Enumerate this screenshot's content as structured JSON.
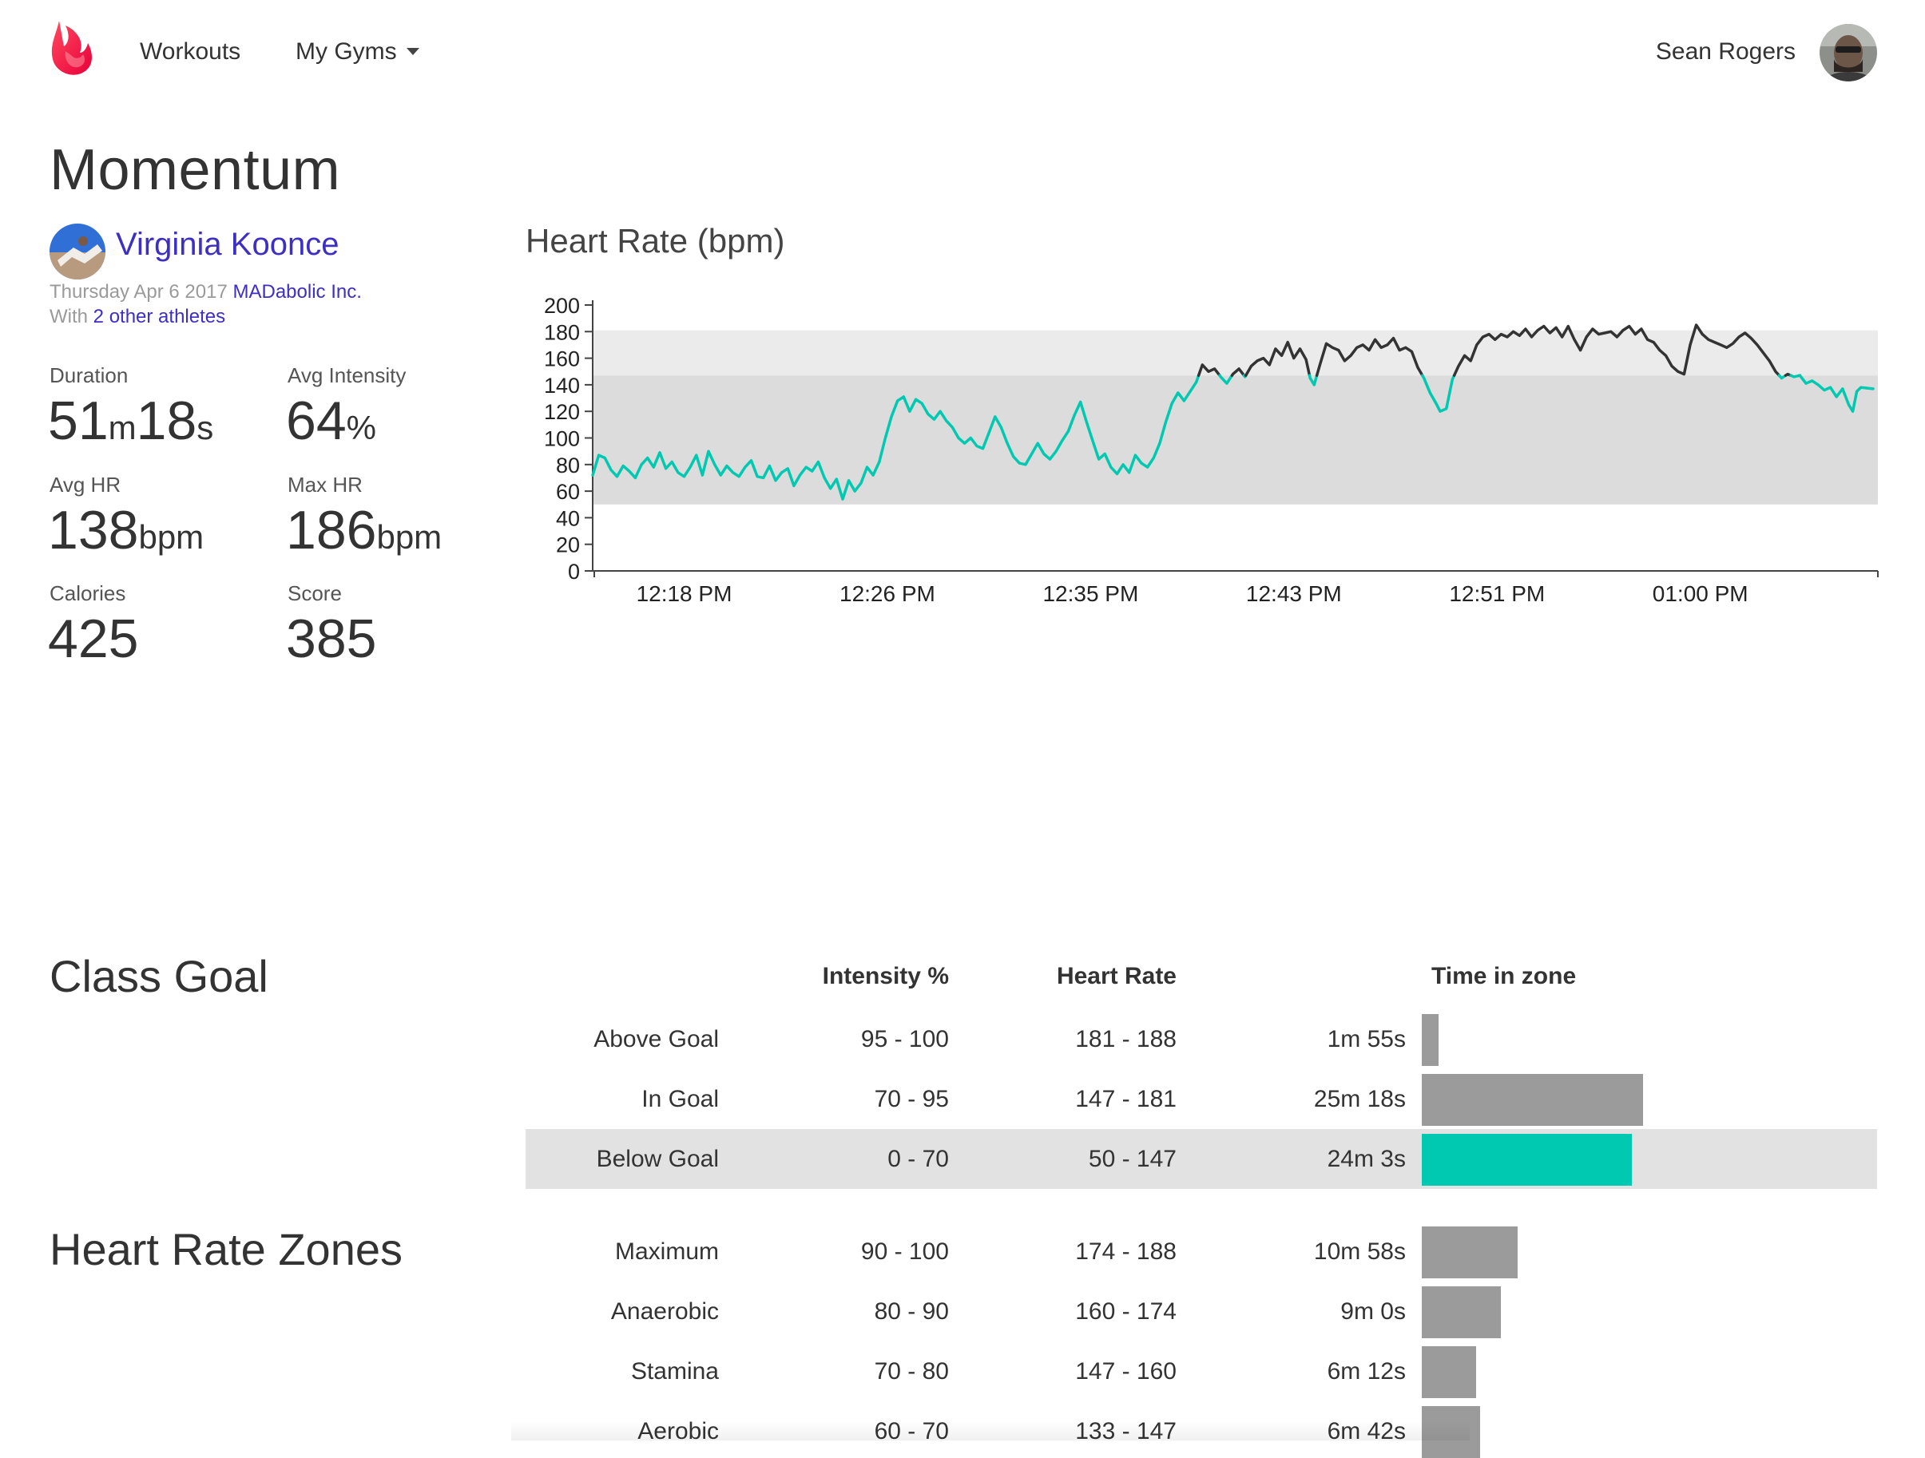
{
  "nav": {
    "items": [
      {
        "label": "Workouts"
      },
      {
        "label": "My Gyms"
      }
    ],
    "user_name": "Sean Rogers"
  },
  "workout": {
    "title": "Momentum",
    "coach_name": "Virginia Koonce",
    "date": "Thursday Apr 6 2017",
    "gym": "MADabolic Inc.",
    "with_prefix": "With",
    "others": "2 other athletes"
  },
  "stats": [
    {
      "label": "Duration",
      "parts": [
        [
          "51",
          "n"
        ],
        [
          "m",
          "u"
        ],
        [
          "18",
          "n"
        ],
        [
          "s",
          "u"
        ]
      ]
    },
    {
      "label": "Avg Intensity",
      "parts": [
        [
          "64",
          "n"
        ],
        [
          "%",
          "u"
        ]
      ]
    },
    {
      "label": "Avg HR",
      "parts": [
        [
          "138",
          "n"
        ],
        [
          "bpm",
          "u"
        ]
      ]
    },
    {
      "label": "Max HR",
      "parts": [
        [
          "186",
          "n"
        ],
        [
          "bpm",
          "u"
        ]
      ]
    },
    {
      "label": "Calories",
      "parts": [
        [
          "425",
          "n"
        ]
      ]
    },
    {
      "label": "Score",
      "parts": [
        [
          "385",
          "n"
        ]
      ]
    }
  ],
  "colors": {
    "accent_teal": "#00c9b1",
    "link_purple": "#3d2ec4",
    "brand_red": "#f0294f",
    "bar_gray": "#9b9b9b",
    "line_dark": "#333333"
  },
  "chart_data": {
    "type": "line",
    "title": "Heart Rate (bpm)",
    "ylim": [
      0,
      200
    ],
    "yticks": [
      0,
      20,
      40,
      60,
      80,
      100,
      120,
      140,
      160,
      180,
      200
    ],
    "xlim_minutes": [
      0,
      62
    ],
    "xticks": [
      {
        "label": "12:18 PM",
        "t": 4.5
      },
      {
        "label": "12:26 PM",
        "t": 14.5
      },
      {
        "label": "12:35 PM",
        "t": 24.5
      },
      {
        "label": "12:43 PM",
        "t": 34.5
      },
      {
        "label": "12:51 PM",
        "t": 44.5
      },
      {
        "label": "01:00 PM",
        "t": 54.5
      }
    ],
    "bands": [
      {
        "name": "In Goal",
        "range": [
          147,
          181
        ],
        "color": "#ebebeb"
      },
      {
        "name": "Below Goal",
        "range": [
          50,
          147
        ],
        "color": "#dcdcdc"
      }
    ],
    "threshold": 147,
    "series": [
      {
        "points": [
          [
            0.0,
            72
          ],
          [
            0.3,
            87
          ],
          [
            0.6,
            85
          ],
          [
            0.9,
            76
          ],
          [
            1.2,
            71
          ],
          [
            1.5,
            79
          ],
          [
            1.8,
            75
          ],
          [
            2.1,
            70
          ],
          [
            2.4,
            80
          ],
          [
            2.7,
            85
          ],
          [
            3.0,
            78
          ],
          [
            3.3,
            89
          ],
          [
            3.6,
            77
          ],
          [
            3.9,
            82
          ],
          [
            4.2,
            74
          ],
          [
            4.5,
            71
          ],
          [
            4.8,
            78
          ],
          [
            5.1,
            87
          ],
          [
            5.4,
            72
          ],
          [
            5.7,
            90
          ],
          [
            6.0,
            80
          ],
          [
            6.3,
            72
          ],
          [
            6.6,
            79
          ],
          [
            6.9,
            74
          ],
          [
            7.2,
            71
          ],
          [
            7.5,
            78
          ],
          [
            7.8,
            83
          ],
          [
            8.1,
            71
          ],
          [
            8.4,
            70
          ],
          [
            8.7,
            79
          ],
          [
            9.0,
            68
          ],
          [
            9.3,
            74
          ],
          [
            9.6,
            77
          ],
          [
            9.9,
            64
          ],
          [
            10.2,
            72
          ],
          [
            10.5,
            78
          ],
          [
            10.8,
            75
          ],
          [
            11.1,
            82
          ],
          [
            11.4,
            70
          ],
          [
            11.7,
            62
          ],
          [
            12.0,
            69
          ],
          [
            12.3,
            54
          ],
          [
            12.6,
            68
          ],
          [
            12.9,
            60
          ],
          [
            13.2,
            66
          ],
          [
            13.5,
            78
          ],
          [
            13.8,
            72
          ],
          [
            14.1,
            82
          ],
          [
            14.4,
            100
          ],
          [
            14.7,
            116
          ],
          [
            15.0,
            128
          ],
          [
            15.3,
            131
          ],
          [
            15.6,
            120
          ],
          [
            15.9,
            129
          ],
          [
            16.2,
            126
          ],
          [
            16.5,
            118
          ],
          [
            16.8,
            114
          ],
          [
            17.1,
            120
          ],
          [
            17.4,
            113
          ],
          [
            17.7,
            108
          ],
          [
            18.0,
            100
          ],
          [
            18.3,
            96
          ],
          [
            18.6,
            100
          ],
          [
            18.9,
            94
          ],
          [
            19.2,
            92
          ],
          [
            19.5,
            104
          ],
          [
            19.8,
            116
          ],
          [
            20.1,
            108
          ],
          [
            20.4,
            96
          ],
          [
            20.7,
            86
          ],
          [
            21.0,
            81
          ],
          [
            21.3,
            80
          ],
          [
            21.6,
            88
          ],
          [
            21.9,
            96
          ],
          [
            22.2,
            88
          ],
          [
            22.5,
            84
          ],
          [
            22.8,
            90
          ],
          [
            23.1,
            98
          ],
          [
            23.4,
            105
          ],
          [
            23.7,
            117
          ],
          [
            24.0,
            127
          ],
          [
            24.3,
            112
          ],
          [
            24.6,
            98
          ],
          [
            24.9,
            84
          ],
          [
            25.2,
            88
          ],
          [
            25.5,
            78
          ],
          [
            25.8,
            73
          ],
          [
            26.1,
            80
          ],
          [
            26.4,
            74
          ],
          [
            26.7,
            87
          ],
          [
            27.0,
            81
          ],
          [
            27.3,
            78
          ],
          [
            27.6,
            85
          ],
          [
            27.9,
            96
          ],
          [
            28.2,
            112
          ],
          [
            28.5,
            126
          ],
          [
            28.8,
            134
          ],
          [
            29.1,
            128
          ],
          [
            29.4,
            135
          ],
          [
            29.7,
            142
          ],
          [
            30.0,
            155
          ],
          [
            30.3,
            150
          ],
          [
            30.6,
            152
          ],
          [
            30.9,
            146
          ],
          [
            31.2,
            141
          ],
          [
            31.5,
            148
          ],
          [
            31.8,
            152
          ],
          [
            32.1,
            146
          ],
          [
            32.4,
            154
          ],
          [
            32.7,
            158
          ],
          [
            33.0,
            160
          ],
          [
            33.3,
            155
          ],
          [
            33.6,
            167
          ],
          [
            33.9,
            162
          ],
          [
            34.2,
            172
          ],
          [
            34.5,
            160
          ],
          [
            34.8,
            167
          ],
          [
            35.1,
            159
          ],
          [
            35.3,
            145
          ],
          [
            35.5,
            140
          ],
          [
            35.8,
            156
          ],
          [
            36.1,
            171
          ],
          [
            36.4,
            168
          ],
          [
            36.7,
            166
          ],
          [
            37.0,
            158
          ],
          [
            37.3,
            162
          ],
          [
            37.6,
            168
          ],
          [
            37.9,
            170
          ],
          [
            38.2,
            166
          ],
          [
            38.5,
            174
          ],
          [
            38.8,
            168
          ],
          [
            39.1,
            170
          ],
          [
            39.4,
            175
          ],
          [
            39.7,
            166
          ],
          [
            40.0,
            168
          ],
          [
            40.3,
            165
          ],
          [
            40.6,
            153
          ],
          [
            40.9,
            145
          ],
          [
            41.2,
            134
          ],
          [
            41.5,
            126
          ],
          [
            41.7,
            120
          ],
          [
            42.0,
            122
          ],
          [
            42.3,
            144
          ],
          [
            42.6,
            154
          ],
          [
            42.9,
            162
          ],
          [
            43.2,
            158
          ],
          [
            43.5,
            170
          ],
          [
            43.8,
            176
          ],
          [
            44.1,
            178
          ],
          [
            44.4,
            174
          ],
          [
            44.7,
            178
          ],
          [
            45.0,
            176
          ],
          [
            45.3,
            180
          ],
          [
            45.6,
            177
          ],
          [
            45.9,
            182
          ],
          [
            46.2,
            176
          ],
          [
            46.5,
            181
          ],
          [
            46.8,
            184
          ],
          [
            47.1,
            179
          ],
          [
            47.4,
            183
          ],
          [
            47.7,
            176
          ],
          [
            48.0,
            184
          ],
          [
            48.3,
            174
          ],
          [
            48.6,
            166
          ],
          [
            48.9,
            176
          ],
          [
            49.2,
            182
          ],
          [
            49.5,
            178
          ],
          [
            49.8,
            179
          ],
          [
            50.1,
            180
          ],
          [
            50.4,
            176
          ],
          [
            50.7,
            181
          ],
          [
            51.0,
            184
          ],
          [
            51.3,
            178
          ],
          [
            51.6,
            182
          ],
          [
            51.9,
            174
          ],
          [
            52.2,
            172
          ],
          [
            52.5,
            166
          ],
          [
            52.8,
            162
          ],
          [
            53.1,
            154
          ],
          [
            53.4,
            150
          ],
          [
            53.7,
            148
          ],
          [
            54.0,
            170
          ],
          [
            54.3,
            185
          ],
          [
            54.6,
            178
          ],
          [
            54.9,
            174
          ],
          [
            55.2,
            172
          ],
          [
            55.5,
            170
          ],
          [
            55.8,
            168
          ],
          [
            56.1,
            171
          ],
          [
            56.4,
            176
          ],
          [
            56.7,
            179
          ],
          [
            57.0,
            175
          ],
          [
            57.3,
            170
          ],
          [
            57.6,
            164
          ],
          [
            57.9,
            158
          ],
          [
            58.2,
            150
          ],
          [
            58.5,
            145
          ],
          [
            58.8,
            148
          ],
          [
            59.1,
            146
          ],
          [
            59.4,
            147
          ],
          [
            59.7,
            141
          ],
          [
            60.0,
            143
          ],
          [
            60.3,
            140
          ],
          [
            60.6,
            136
          ],
          [
            60.9,
            138
          ],
          [
            61.2,
            131
          ],
          [
            61.5,
            137
          ],
          [
            61.8,
            125
          ],
          [
            62.0,
            120
          ],
          [
            62.2,
            135
          ],
          [
            62.4,
            138
          ],
          [
            63.0,
            137
          ]
        ]
      }
    ]
  },
  "class_goal": {
    "title": "Class Goal",
    "headers": {
      "intensity": "Intensity %",
      "heart_rate": "Heart Rate",
      "time": "Time in zone"
    },
    "rows": [
      {
        "name": "Above Goal",
        "intensity": "95 - 100",
        "hr": "181 - 188",
        "time": "1m 55s",
        "seconds": 115,
        "highlight": false
      },
      {
        "name": "In Goal",
        "intensity": "70 - 95",
        "hr": "147 - 181",
        "time": "25m 18s",
        "seconds": 1518,
        "highlight": false
      },
      {
        "name": "Below Goal",
        "intensity": "0 - 70",
        "hr": "50 - 147",
        "time": "24m 3s",
        "seconds": 1443,
        "highlight": true
      }
    ]
  },
  "hr_zones": {
    "title": "Heart Rate Zones",
    "rows": [
      {
        "name": "Maximum",
        "intensity": "90 - 100",
        "hr": "174 - 188",
        "time": "10m 58s",
        "seconds": 658
      },
      {
        "name": "Anaerobic",
        "intensity": "80 - 90",
        "hr": "160 - 174",
        "time": "9m 0s",
        "seconds": 540
      },
      {
        "name": "Stamina",
        "intensity": "70 - 80",
        "hr": "147 - 160",
        "time": "6m 12s",
        "seconds": 372
      },
      {
        "name": "Aerobic",
        "intensity": "60 - 70",
        "hr": "133 - 147",
        "time": "6m 42s",
        "seconds": 402
      }
    ]
  }
}
